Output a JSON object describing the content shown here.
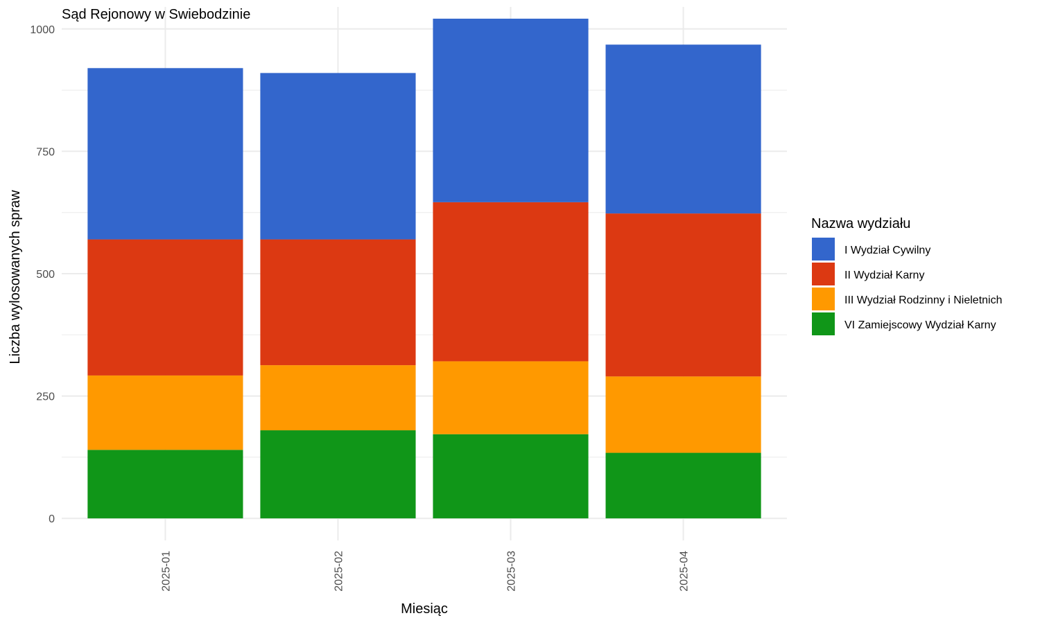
{
  "chart_data": {
    "type": "bar",
    "stacked": true,
    "title": "Sąd Rejonowy w Swiebodzinie",
    "xlabel": "Miesiąc",
    "ylabel": "Liczba wylosowanych spraw",
    "ylim": [
      -45,
      1045
    ],
    "y_ticks": [
      0,
      250,
      500,
      750,
      1000
    ],
    "y_tick_labels": [
      "0",
      "250",
      "500",
      "750",
      "1000"
    ],
    "y_minor_ticks": [
      125,
      375,
      625,
      875
    ],
    "grid": true,
    "categories": [
      "2025-01",
      "2025-02",
      "2025-03",
      "2025-04"
    ],
    "legend": {
      "title": "Nazwa wydziału",
      "position": "right"
    },
    "series": [
      {
        "name": "VI Zamiejscowy Wydział Karny",
        "color": "#109618",
        "values": [
          140,
          180,
          172,
          134
        ]
      },
      {
        "name": "III Wydział Rodzinny i Nieletnich",
        "color": "#FF9900",
        "values": [
          152,
          133,
          149,
          156
        ]
      },
      {
        "name": "II Wydział Karny",
        "color": "#DC3912",
        "values": [
          278,
          257,
          325,
          333
        ]
      },
      {
        "name": "I Wydział Cywilny",
        "color": "#3366CC",
        "values": [
          350,
          340,
          375,
          345
        ]
      }
    ],
    "legend_order": [
      "I Wydział Cywilny",
      "II Wydział Karny",
      "III Wydział Rodzinny i Nieletnich",
      "VI Zamiejscowy Wydział Karny"
    ]
  }
}
